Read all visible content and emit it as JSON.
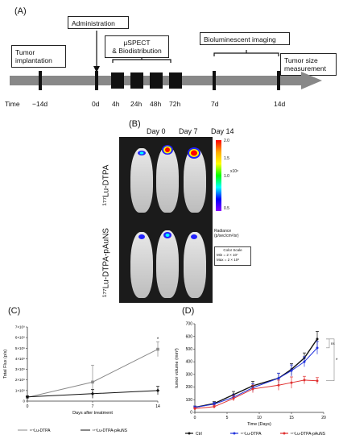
{
  "panelA": {
    "label": "(A)",
    "boxes": {
      "tumor": [
        "Tumor",
        "implantation"
      ],
      "administration": "Administration",
      "spect": [
        "µSPECT",
        "& Biodistribution"
      ],
      "biolum": "Bioluminescent imaging",
      "size": [
        "Tumor size",
        "measurement"
      ]
    },
    "time_label": "Time",
    "ticks": [
      "−14d",
      "0d",
      "4h",
      "24h",
      "48h",
      "72h",
      "7d",
      "14d"
    ]
  },
  "panelB": {
    "label": "(B)",
    "days": [
      "Day 0",
      "Day 7",
      "Day 14"
    ],
    "row1": "¹⁷⁷Lu-DTPA",
    "row2": "¹⁷⁷Lu-DTPA-pAuNS",
    "scale_ticks": [
      "2.0",
      "1.5",
      "1.0",
      "0.5"
    ],
    "scale_exp": "x10⁸",
    "radiance": [
      "Radiance",
      "(p/sec/cm²/sr)"
    ],
    "colorscale": [
      "Color Scale",
      "Min = 2 × 10⁷",
      "Max = 2 × 10⁸"
    ],
    "colors": [
      "#ff0000",
      "#ffaa00",
      "#ffff00",
      "#00ff00",
      "#00ffff",
      "#0000ff",
      "#8800ff"
    ]
  },
  "panelC": {
    "label": "(C)",
    "star": "*",
    "chart_data": {
      "type": "line",
      "xlabel": "Days after treatment",
      "ylabel": "Total Flux (p/s)",
      "x": [
        0,
        7,
        14
      ],
      "xlim": [
        0,
        14
      ],
      "ylim": [
        0,
        7000000000
      ],
      "yticks": [
        "0",
        "1×10⁹",
        "2×10⁹",
        "3×10⁹",
        "4×10⁹",
        "5×10⁹",
        "6×10⁹",
        "7×10⁹"
      ],
      "series": [
        {
          "name": "¹⁷⁷Lu-DTPA",
          "values": [
            350000000,
            1800000000,
            4900000000
          ],
          "err": [
            100000000,
            1600000000,
            700000000
          ],
          "color": "#8a8a8a"
        },
        {
          "name": "¹⁷⁷Lu-DTPA-pAuNS",
          "values": [
            400000000,
            700000000,
            1000000000
          ],
          "err": [
            100000000,
            400000000,
            400000000
          ],
          "color": "#111111"
        }
      ]
    }
  },
  "panelD": {
    "label": "(D)",
    "ns": "ns",
    "star": "*",
    "chart_data": {
      "type": "line",
      "xlabel": "Time (Days)",
      "ylabel": "tumor volume (mm³)",
      "x": [
        0,
        3,
        6,
        9,
        13,
        15,
        17,
        19
      ],
      "xlim": [
        0,
        20
      ],
      "ylim": [
        0,
        700
      ],
      "xticks": [
        0,
        5,
        10,
        15,
        20
      ],
      "yticks": [
        0,
        100,
        200,
        300,
        400,
        500,
        600,
        700
      ],
      "series": [
        {
          "name": "Ctrl",
          "values": [
            40,
            70,
            140,
            210,
            270,
            340,
            430,
            580
          ],
          "err": [
            10,
            15,
            25,
            35,
            40,
            45,
            40,
            60
          ],
          "color": "#111111"
        },
        {
          "name": "¹⁷⁷Lu-DTPA",
          "values": [
            40,
            65,
            120,
            195,
            270,
            330,
            400,
            510
          ],
          "err": [
            10,
            15,
            20,
            30,
            40,
            45,
            40,
            50
          ],
          "color": "#2233dd"
        },
        {
          "name": "¹⁷⁷Lu-DTPA-pAuNS",
          "values": [
            30,
            45,
            110,
            185,
            215,
            235,
            255,
            250
          ],
          "err": [
            8,
            12,
            20,
            30,
            40,
            45,
            30,
            25
          ],
          "color": "#e03030"
        }
      ]
    }
  }
}
